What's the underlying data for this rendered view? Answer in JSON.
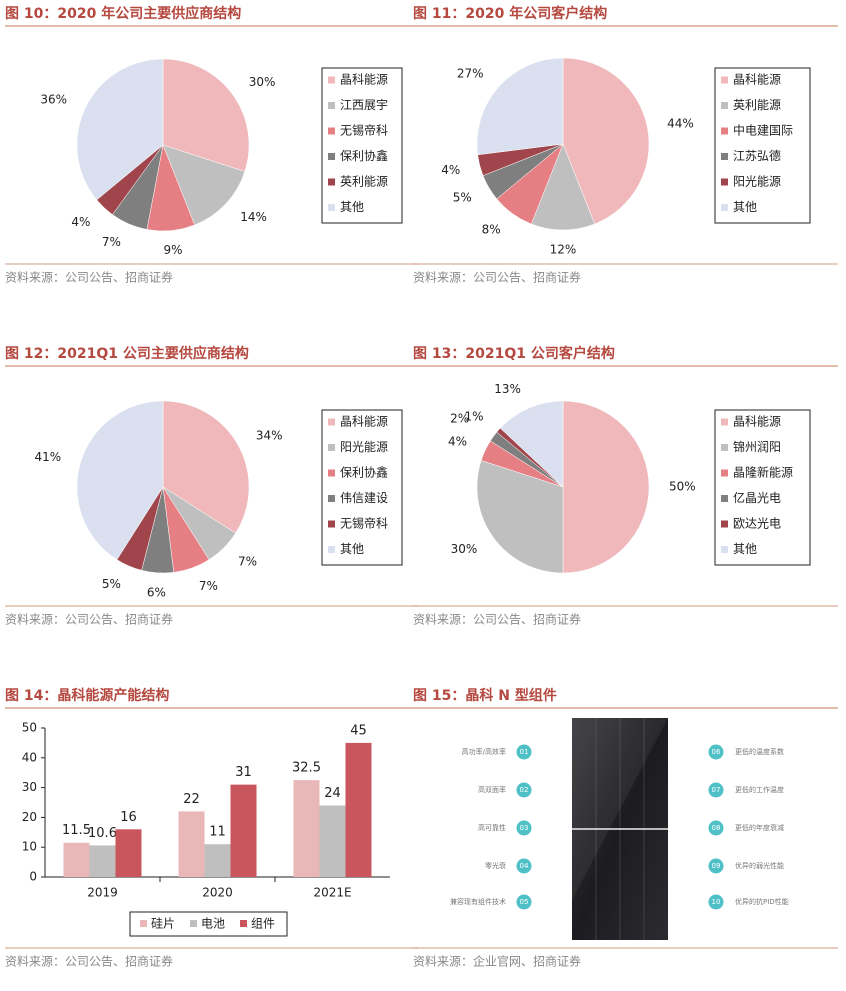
{
  "chart_data": [
    {
      "type": "pie",
      "title": "图 10：2020 年公司主要供应商结构",
      "source": "资料来源：公司公告、招商证券",
      "categories": [
        "晶科能源",
        "江西展宇",
        "无锡帝科",
        "保利协鑫",
        "英利能源",
        "其他"
      ],
      "values": [
        30,
        14,
        9,
        7,
        4,
        36
      ],
      "value_labels": [
        "30%",
        "14%",
        "9%",
        "7%",
        "4%",
        "36%"
      ],
      "colors": [
        "#f0b8bb",
        "#bfbfbf",
        "#e57f84",
        "#7f7f7f",
        "#a0454c",
        "#dae0f0"
      ]
    },
    {
      "type": "pie",
      "title": "图 11：2020 年公司客户结构",
      "source": "资料来源：公司公告、招商证券",
      "categories": [
        "晶科能源",
        "英利能源",
        "中电建国际",
        "江苏弘德",
        "阳光能源",
        "其他"
      ],
      "values": [
        44,
        12,
        8,
        5,
        4,
        27
      ],
      "value_labels": [
        "44%",
        "12%",
        "8%",
        "5%",
        "4%",
        "27%"
      ],
      "colors": [
        "#f0b8bb",
        "#bfbfbf",
        "#e57f84",
        "#7f7f7f",
        "#a0454c",
        "#dae0f0"
      ]
    },
    {
      "type": "pie",
      "title": "图 12：2021Q1 公司主要供应商结构",
      "source": "资料来源：公司公告、招商证券",
      "categories": [
        "晶科能源",
        "阳光能源",
        "保利协鑫",
        "伟信建设",
        "无锡帝科",
        "其他"
      ],
      "values": [
        34,
        7,
        7,
        6,
        5,
        41
      ],
      "value_labels": [
        "34%",
        "7%",
        "7%",
        "6%",
        "5%",
        "41%"
      ],
      "colors": [
        "#f0b8bb",
        "#bfbfbf",
        "#e57f84",
        "#7f7f7f",
        "#a0454c",
        "#dae0f0"
      ]
    },
    {
      "type": "pie",
      "title": "图 13：2021Q1 公司客户结构",
      "source": "资料来源：公司公告、招商证券",
      "categories": [
        "晶科能源",
        "锦州润阳",
        "晶隆新能源",
        "亿晶光电",
        "欧达光电",
        "其他"
      ],
      "values": [
        50,
        30,
        4,
        2,
        1,
        13
      ],
      "value_labels": [
        "50%",
        "30%",
        "4%",
        "2%",
        "1%",
        "13%"
      ],
      "colors": [
        "#f0b8bb",
        "#bfbfbf",
        "#e57f84",
        "#7f7f7f",
        "#a0454c",
        "#dae0f0"
      ]
    },
    {
      "type": "bar",
      "title": "图 14：晶科能源产能结构",
      "source": "资料来源：公司公告、招商证券",
      "categories": [
        "2019",
        "2020",
        "2021E"
      ],
      "series": [
        {
          "name": "硅片",
          "color": "#e9b7b8",
          "values": [
            11.5,
            22,
            32.5
          ]
        },
        {
          "name": "电池",
          "color": "#bfbfbf",
          "values": [
            10.6,
            11,
            24
          ]
        },
        {
          "name": "组件",
          "color": "#c9565c",
          "values": [
            16,
            31,
            45
          ]
        }
      ],
      "ylim": [
        0,
        50
      ],
      "yticks": [
        0,
        10,
        20,
        30,
        40,
        50
      ],
      "legend": "bottom"
    }
  ],
  "panel": {
    "title": "图 15：晶科 N 型组件",
    "source": "资料来源：企业官网、招商证券",
    "features_left": [
      {
        "num": "01",
        "label": "高功率/高效率"
      },
      {
        "num": "02",
        "label": "高双面率"
      },
      {
        "num": "03",
        "label": "高可靠性"
      },
      {
        "num": "04",
        "label": "零光衰"
      },
      {
        "num": "05",
        "label": "兼容现有组件技术"
      }
    ],
    "features_right": [
      {
        "num": "06",
        "label": "更低的温度系数"
      },
      {
        "num": "07",
        "label": "更低的工作温度"
      },
      {
        "num": "08",
        "label": "更低的年度衰减"
      },
      {
        "num": "09",
        "label": "优异的弱光性能"
      },
      {
        "num": "10",
        "label": "优异的抗PID性能"
      }
    ]
  }
}
